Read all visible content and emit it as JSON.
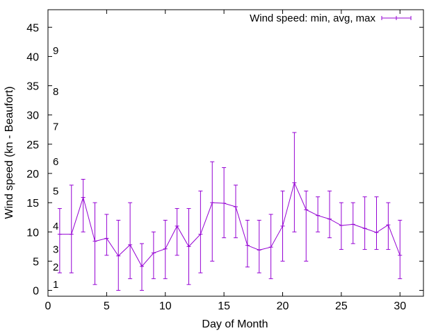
{
  "chart_data": {
    "type": "line",
    "xlabel": "Day of Month",
    "ylabel": "Wind speed (kn - Beaufort)",
    "xlim": [
      0,
      32
    ],
    "ylim": [
      -1,
      48
    ],
    "x_ticks": [
      0,
      5,
      10,
      15,
      20,
      25,
      30
    ],
    "y_ticks": [
      0,
      5,
      10,
      15,
      20,
      25,
      30,
      35,
      40,
      45
    ],
    "grid": false,
    "legend": "top-right",
    "series": [
      {
        "name": "Wind speed: min, avg, max",
        "color": "#9400d3",
        "style": "line with error bars",
        "x": [
          1,
          2,
          3,
          4,
          5,
          6,
          7,
          8,
          9,
          10,
          11,
          12,
          13,
          14,
          15,
          16,
          17,
          18,
          19,
          20,
          21,
          22,
          23,
          24,
          25,
          26,
          27,
          28,
          29,
          30
        ],
        "avg": [
          9.6,
          9.6,
          15.9,
          8.4,
          8.9,
          5.9,
          7.8,
          4.1,
          6.4,
          7.1,
          11.0,
          7.5,
          9.6,
          15.0,
          14.9,
          14.3,
          7.7,
          6.9,
          7.4,
          11.0,
          18.4,
          13.8,
          12.8,
          12.2,
          11.1,
          11.3,
          10.6,
          9.9,
          11.2,
          6.0
        ],
        "min": [
          3,
          3,
          10,
          1,
          6,
          0,
          2,
          0,
          2,
          2,
          6,
          1,
          3,
          5,
          9,
          9,
          4,
          3,
          2,
          5,
          10,
          5,
          10,
          9,
          7,
          8,
          7,
          7,
          7,
          2
        ],
        "max": [
          14,
          18,
          19,
          15,
          13,
          12,
          15,
          8,
          10,
          12,
          14,
          14,
          17,
          22,
          21,
          18,
          12,
          12,
          13,
          17,
          27,
          17,
          16,
          17,
          15,
          15,
          16,
          16,
          15,
          12
        ]
      }
    ],
    "annotations": [
      {
        "text": "1",
        "y": 1
      },
      {
        "text": "2",
        "y": 4
      },
      {
        "text": "3",
        "y": 7
      },
      {
        "text": "4",
        "y": 11
      },
      {
        "text": "5",
        "y": 17
      },
      {
        "text": "6",
        "y": 22
      },
      {
        "text": "7",
        "y": 28
      },
      {
        "text": "8",
        "y": 34
      },
      {
        "text": "9",
        "y": 41
      }
    ]
  }
}
